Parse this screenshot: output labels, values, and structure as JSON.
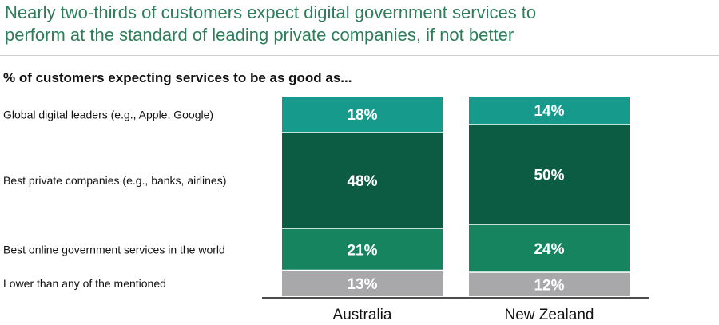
{
  "header": {
    "title_line1": "Nearly two-thirds of customers expect digital government services to",
    "title_line2": "perform at the standard of leading private companies, if not better",
    "subtitle": "% of customers expecting services to be as good as..."
  },
  "colors": {
    "title": "#2e7d5b",
    "global_digital_leaders": "#159a8c",
    "best_private_companies": "#0b5c43",
    "best_online_government": "#15845f",
    "lower": "#a8a8ab"
  },
  "chart_data": {
    "type": "bar",
    "stacked": true,
    "normalized_percent": true,
    "categories": [
      "Australia",
      "New Zealand"
    ],
    "series": [
      {
        "name": "Lower than any of the mentioned",
        "values": [
          13,
          12
        ],
        "labels": [
          "13%",
          "12%"
        ],
        "color": "#a8a8ab"
      },
      {
        "name": "Best online government services in the world",
        "values": [
          21,
          24
        ],
        "labels": [
          "21%",
          "24%"
        ],
        "color": "#15845f"
      },
      {
        "name": "Best private companies (e.g., banks, airlines)",
        "values": [
          48,
          50
        ],
        "labels": [
          "48%",
          "50%"
        ],
        "color": "#0b5c43"
      },
      {
        "name": "Global digital leaders (e.g., Apple,  Google)",
        "values": [
          18,
          14
        ],
        "labels": [
          "18%",
          "14%"
        ],
        "color": "#159a8c"
      }
    ],
    "title": "Nearly two-thirds of customers expect digital government services to perform at the standard of leading private companies, if not better",
    "subtitle": "% of customers expecting services to be as good as...",
    "xlabel": "",
    "ylabel": "",
    "ylim": [
      0,
      100
    ],
    "grid": false,
    "legend": "left"
  }
}
